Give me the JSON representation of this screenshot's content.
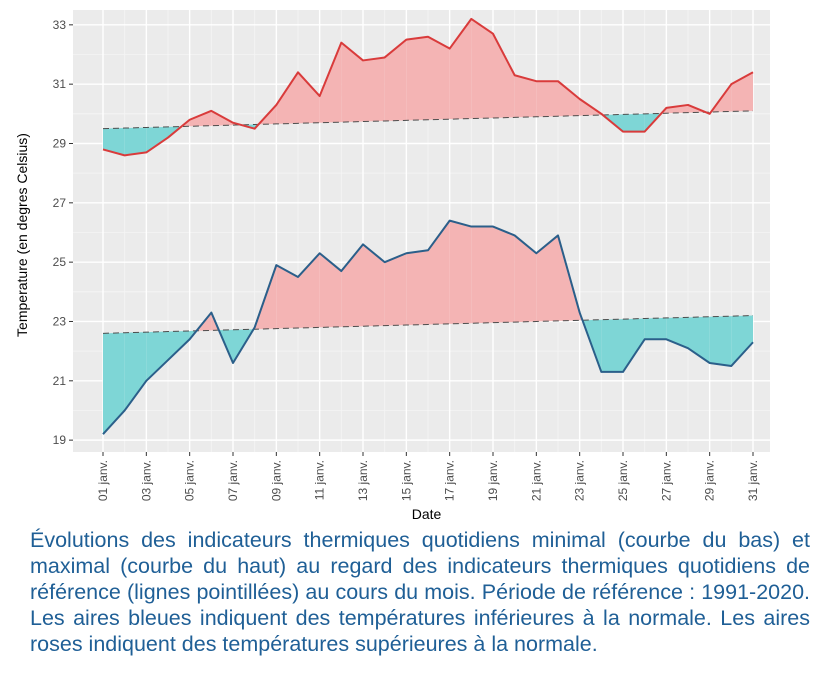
{
  "chart_data": {
    "type": "line",
    "xlabel": "Date",
    "ylabel": "Temperature (en degres Celsius)",
    "x": [
      "01 janv.",
      "02 janv.",
      "03 janv.",
      "04 janv.",
      "05 janv.",
      "06 janv.",
      "07 janv.",
      "08 janv.",
      "09 janv.",
      "10 janv.",
      "11 janv.",
      "12 janv.",
      "13 janv.",
      "14 janv.",
      "15 janv.",
      "16 janv.",
      "17 janv.",
      "18 janv.",
      "19 janv.",
      "20 janv.",
      "21 janv.",
      "22 janv.",
      "23 janv.",
      "24 janv.",
      "25 janv.",
      "26 janv.",
      "27 janv.",
      "28 janv.",
      "29 janv.",
      "30 janv.",
      "31 janv."
    ],
    "x_tick_labels": [
      "01 janv.",
      "03 janv.",
      "05 janv.",
      "07 janv.",
      "09 janv.",
      "11 janv.",
      "13 janv.",
      "15 janv.",
      "17 janv.",
      "19 janv.",
      "21 janv.",
      "23 janv.",
      "25 janv.",
      "27 janv.",
      "29 janv.",
      "31 janv."
    ],
    "y_ticks": [
      19,
      21,
      23,
      25,
      27,
      29,
      31,
      33
    ],
    "ylim": [
      18.6,
      33.5
    ],
    "grid": true,
    "legend": "none",
    "series": [
      {
        "role": "maximum",
        "color": "#d93b3b",
        "values": [
          28.8,
          28.6,
          28.7,
          29.2,
          29.8,
          30.1,
          29.7,
          29.5,
          30.3,
          31.4,
          30.6,
          32.4,
          31.8,
          31.9,
          32.5,
          32.6,
          32.2,
          33.2,
          32.7,
          31.3,
          31.1,
          31.1,
          30.5,
          30.0,
          29.4,
          29.4,
          30.2,
          30.3,
          30.0,
          31.0,
          31.4
        ]
      },
      {
        "role": "maximum reference",
        "color": "#4d4d4d",
        "style": "dashed",
        "values": [
          29.5,
          29.52,
          29.54,
          29.56,
          29.58,
          29.6,
          29.62,
          29.64,
          29.66,
          29.68,
          29.7,
          29.72,
          29.74,
          29.76,
          29.78,
          29.8,
          29.82,
          29.84,
          29.86,
          29.88,
          29.9,
          29.92,
          29.94,
          29.96,
          29.98,
          30.0,
          30.02,
          30.04,
          30.06,
          30.08,
          30.1
        ]
      },
      {
        "role": "minimum",
        "color": "#2b5f8a",
        "values": [
          19.2,
          20.0,
          21.0,
          21.7,
          22.4,
          23.3,
          21.6,
          22.8,
          24.9,
          24.5,
          25.3,
          24.7,
          25.6,
          25.0,
          25.3,
          25.4,
          26.4,
          26.2,
          26.2,
          25.9,
          25.3,
          25.9,
          23.3,
          21.3,
          21.3,
          22.4,
          22.4,
          22.1,
          21.6,
          21.5,
          22.3
        ]
      },
      {
        "role": "minimum reference",
        "color": "#4d4d4d",
        "style": "dashed",
        "values": [
          22.6,
          22.62,
          22.64,
          22.66,
          22.68,
          22.7,
          22.72,
          22.74,
          22.76,
          22.78,
          22.8,
          22.82,
          22.84,
          22.86,
          22.88,
          22.9,
          22.92,
          22.94,
          22.96,
          22.98,
          23.0,
          23.02,
          23.04,
          23.06,
          23.08,
          23.1,
          23.12,
          23.14,
          23.16,
          23.18,
          23.2
        ]
      }
    ],
    "fill_colors": {
      "above_reference": "#f4b4b4",
      "below_reference": "#7ed6d6"
    },
    "panel_color": "#ebebeb"
  },
  "caption": "Évolutions des indicateurs thermiques quotidiens minimal (courbe du bas) et maximal (courbe du haut) au regard des indicateurs thermiques quotidiens de référence (lignes pointillées) au cours du mois. Période de référence : 1991-2020. Les aires bleues indiquent des températures inférieures à la normale. Les aires roses indiquent des températures supérieures à la normale."
}
